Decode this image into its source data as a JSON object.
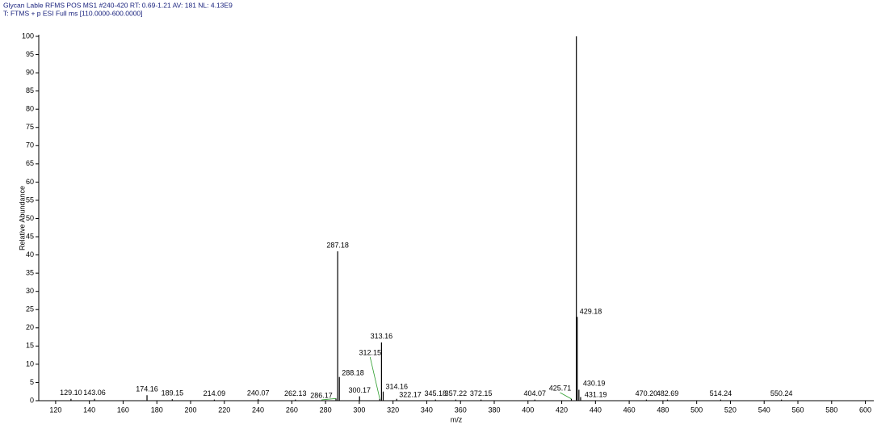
{
  "header": {
    "line1": "Glycan Lable RFMS POS MS1 #240-420  RT: 0.69-1.21  AV: 181  NL: 4.13E9",
    "line2": "T: FTMS + p ESI Full ms [110.0000-600.0000]"
  },
  "chart_data": {
    "type": "spectrum",
    "x_label": "m/z",
    "y_label": "Relative Abundance",
    "x": [
      129.1,
      143.06,
      174.16,
      189.15,
      214.09,
      240.07,
      262.13,
      286.17,
      287.18,
      288.18,
      300.17,
      312.15,
      313.16,
      314.16,
      322.17,
      345.18,
      357.22,
      372.15,
      404.07,
      425.71,
      428.68,
      429.18,
      430.19,
      431.19,
      470.2,
      482.69,
      514.24,
      550.24
    ],
    "labels": [
      "129.10",
      "143.06",
      "174.16",
      "189.15",
      "214.09",
      "240.07",
      "262.13",
      "286.17",
      "287.18",
      "288.18",
      "300.17",
      "312.15",
      "313.16",
      "314.16",
      "322.17",
      "345.18",
      "357.22",
      "372.15",
      "404.07",
      "425.71",
      null,
      "429.18",
      "430.19",
      "431.19",
      "470.20",
      "482.69",
      "514.24",
      "550.24"
    ],
    "values": [
      0.5,
      0.5,
      1.5,
      0.4,
      0.3,
      0.4,
      0.3,
      0.6,
      41,
      6.5,
      1.2,
      0.5,
      16,
      2.5,
      0.5,
      0.3,
      0.3,
      0.3,
      0.3,
      0.5,
      100,
      23,
      3,
      1,
      0.3,
      0.3,
      0.3,
      0.3
    ],
    "color": "#000000",
    "leader_color": "#2e9e2e",
    "xlim": [
      110,
      605
    ],
    "xticks": [
      120,
      140,
      160,
      180,
      200,
      220,
      240,
      260,
      280,
      300,
      320,
      340,
      360,
      380,
      400,
      420,
      440,
      460,
      480,
      500,
      520,
      540,
      560,
      580,
      600
    ],
    "ylim": [
      0,
      100
    ],
    "yticks": [
      0,
      5,
      10,
      15,
      20,
      25,
      30,
      35,
      40,
      45,
      50,
      55,
      60,
      65,
      70,
      75,
      80,
      85,
      90,
      95,
      100
    ]
  }
}
